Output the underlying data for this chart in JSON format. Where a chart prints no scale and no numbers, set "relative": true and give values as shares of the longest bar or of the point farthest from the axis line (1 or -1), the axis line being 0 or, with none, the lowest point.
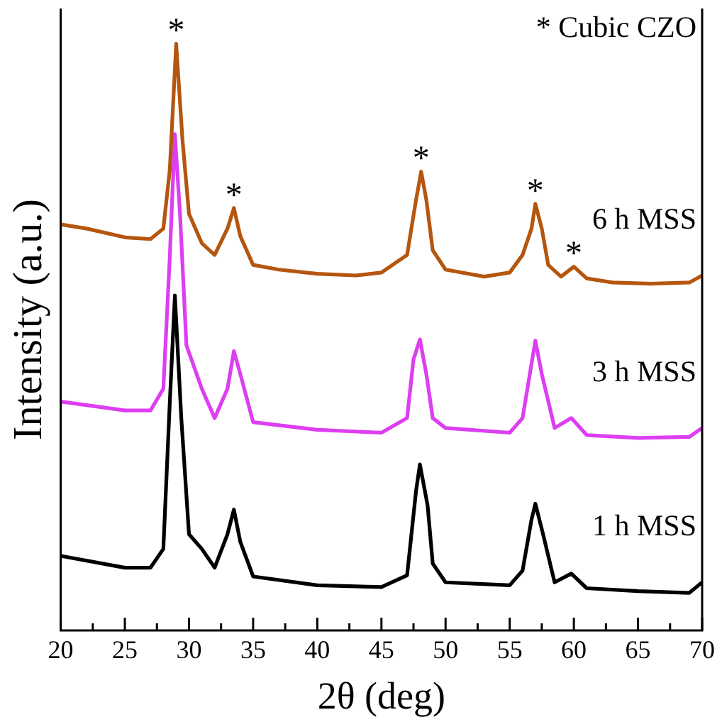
{
  "chart_data": {
    "type": "line",
    "relative": true,
    "xlabel": "2θ (deg)",
    "ylabel": "Intensity (a.u.)",
    "xlim": [
      20,
      70
    ],
    "xticks": [
      20,
      {
        "value": 22.5,
        "label": null
      },
      25,
      {
        "value": 27.5,
        "label": null
      },
      30,
      {
        "value": 32.5,
        "label": null
      },
      35,
      {
        "value": 37.5,
        "label": null
      },
      40,
      {
        "value": 42.5,
        "label": null
      },
      45,
      {
        "value": 47.5,
        "label": null
      },
      50,
      {
        "value": 52.5,
        "label": null
      },
      55,
      {
        "value": 57.5,
        "label": null
      },
      60,
      {
        "value": 62.5,
        "label": null
      },
      65,
      {
        "value": 67.5,
        "label": null
      },
      70
    ],
    "grid": false,
    "legend": false,
    "marker": "none",
    "line_style": "solid",
    "annotations": [
      "* Cubic CZO",
      {
        "text": "*",
        "x": 29,
        "y": 1
      },
      {
        "text": "*",
        "x": 33.5,
        "y": 0.72
      },
      {
        "text": "*",
        "x": 48.1,
        "y": 0.782
      },
      {
        "text": "*",
        "x": 57,
        "y": 0.727
      },
      {
        "text": "*",
        "x": 60,
        "y": 0.62
      }
    ],
    "series": [
      {
        "name": "6 h MSS",
        "color": "#b5560f",
        "x": [
          20,
          22,
          25,
          27,
          28,
          28.5,
          29,
          29.5,
          30,
          31,
          32,
          33,
          33.5,
          34,
          35,
          37,
          40,
          43,
          45,
          47,
          47.7,
          48.1,
          48.5,
          49,
          50,
          53,
          55,
          56,
          56.7,
          57,
          57.5,
          58,
          59,
          60,
          61,
          63,
          66,
          69,
          70
        ],
        "values": [
          0.692,
          0.685,
          0.67,
          0.667,
          0.685,
          0.784,
          1,
          0.834,
          0.71,
          0.66,
          0.64,
          0.685,
          0.72,
          0.672,
          0.623,
          0.615,
          0.608,
          0.605,
          0.61,
          0.64,
          0.734,
          0.782,
          0.734,
          0.648,
          0.615,
          0.603,
          0.61,
          0.64,
          0.685,
          0.727,
          0.685,
          0.623,
          0.603,
          0.62,
          0.6,
          0.593,
          0.591,
          0.593,
          0.605
        ]
      },
      {
        "name": "3 h MSS",
        "color": "#dd3ef2",
        "x": [
          20,
          25,
          27,
          28,
          28.5,
          28.9,
          29.3,
          29.8,
          31,
          32,
          33,
          33.5,
          34,
          35,
          40,
          45,
          47,
          47.5,
          48,
          48.5,
          49,
          50,
          55,
          56,
          57,
          57.5,
          58.5,
          59.8,
          61,
          65,
          69,
          70
        ],
        "values": [
          0.39,
          0.375,
          0.375,
          0.412,
          0.635,
          0.846,
          0.71,
          0.486,
          0.412,
          0.362,
          0.412,
          0.476,
          0.437,
          0.355,
          0.342,
          0.337,
          0.362,
          0.462,
          0.496,
          0.437,
          0.362,
          0.345,
          0.337,
          0.362,
          0.494,
          0.437,
          0.345,
          0.362,
          0.333,
          0.328,
          0.33,
          0.345
        ]
      },
      {
        "name": "1 h MSS",
        "color": "#000000",
        "x": [
          20,
          25,
          27,
          28,
          28.5,
          28.9,
          29.4,
          30,
          31,
          32,
          33,
          33.5,
          34,
          35,
          40,
          45,
          47,
          47.7,
          48,
          48.6,
          49,
          50,
          55,
          56,
          56.7,
          57,
          57.6,
          58.5,
          59.8,
          61,
          65,
          69,
          70
        ],
        "values": [
          0.127,
          0.107,
          0.107,
          0.139,
          0.387,
          0.571,
          0.362,
          0.164,
          0.139,
          0.107,
          0.164,
          0.206,
          0.151,
          0.092,
          0.077,
          0.074,
          0.094,
          0.238,
          0.283,
          0.213,
          0.114,
          0.082,
          0.077,
          0.102,
          0.189,
          0.216,
          0.164,
          0.082,
          0.097,
          0.072,
          0.067,
          0.064,
          0.082
        ]
      }
    ]
  }
}
